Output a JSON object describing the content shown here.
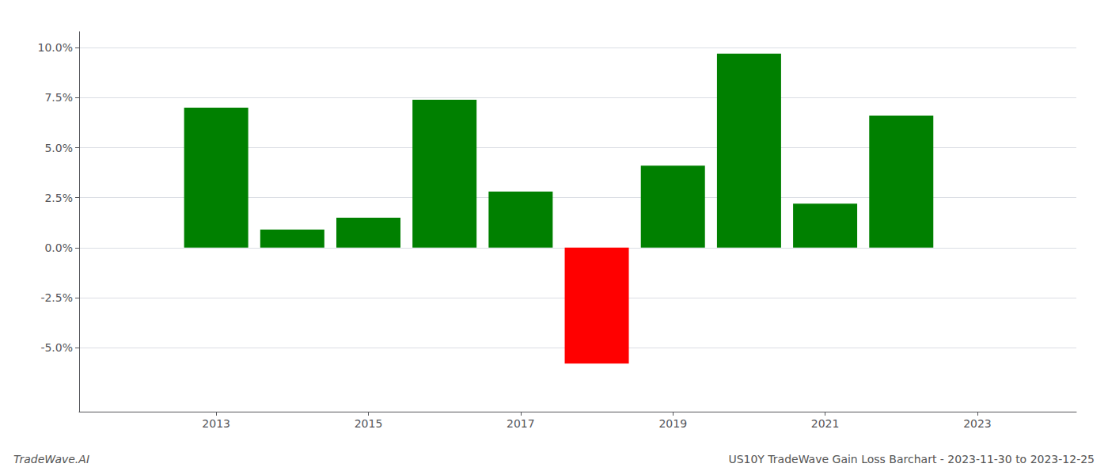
{
  "chart_data": {
    "type": "bar",
    "title": "US10Y TradeWave Gain Loss Barchart - 2023-11-30 to 2023-12-25",
    "annotations": [
      "TradeWave.AI"
    ],
    "x": [
      2013,
      2014,
      2015,
      2016,
      2017,
      2018,
      2019,
      2020,
      2021,
      2022
    ],
    "values": [
      0.07,
      0.009,
      0.015,
      0.074,
      0.028,
      -0.058,
      0.041,
      0.097,
      0.022,
      0.066
    ],
    "colors": [
      "#008000",
      "#008000",
      "#008000",
      "#008000",
      "#008000",
      "#ff0000",
      "#008000",
      "#008000",
      "#008000",
      "#008000"
    ],
    "xlim": [
      2011.2,
      2024.3
    ],
    "xticks": [
      2013,
      2015,
      2017,
      2019,
      2021,
      2023
    ],
    "ylim": [
      -0.082,
      0.108
    ],
    "yticks": [
      {
        "value": -0.05,
        "label": "-5.0%"
      },
      {
        "value": -0.025,
        "label": "-2.5%"
      },
      {
        "value": 0.0,
        "label": "0.0%"
      },
      {
        "value": 0.025,
        "label": "2.5%"
      },
      {
        "value": 0.05,
        "label": "5.0%"
      },
      {
        "value": 0.075,
        "label": "7.5%"
      },
      {
        "value": 0.1,
        "label": "10.0%"
      }
    ],
    "grid": true
  }
}
